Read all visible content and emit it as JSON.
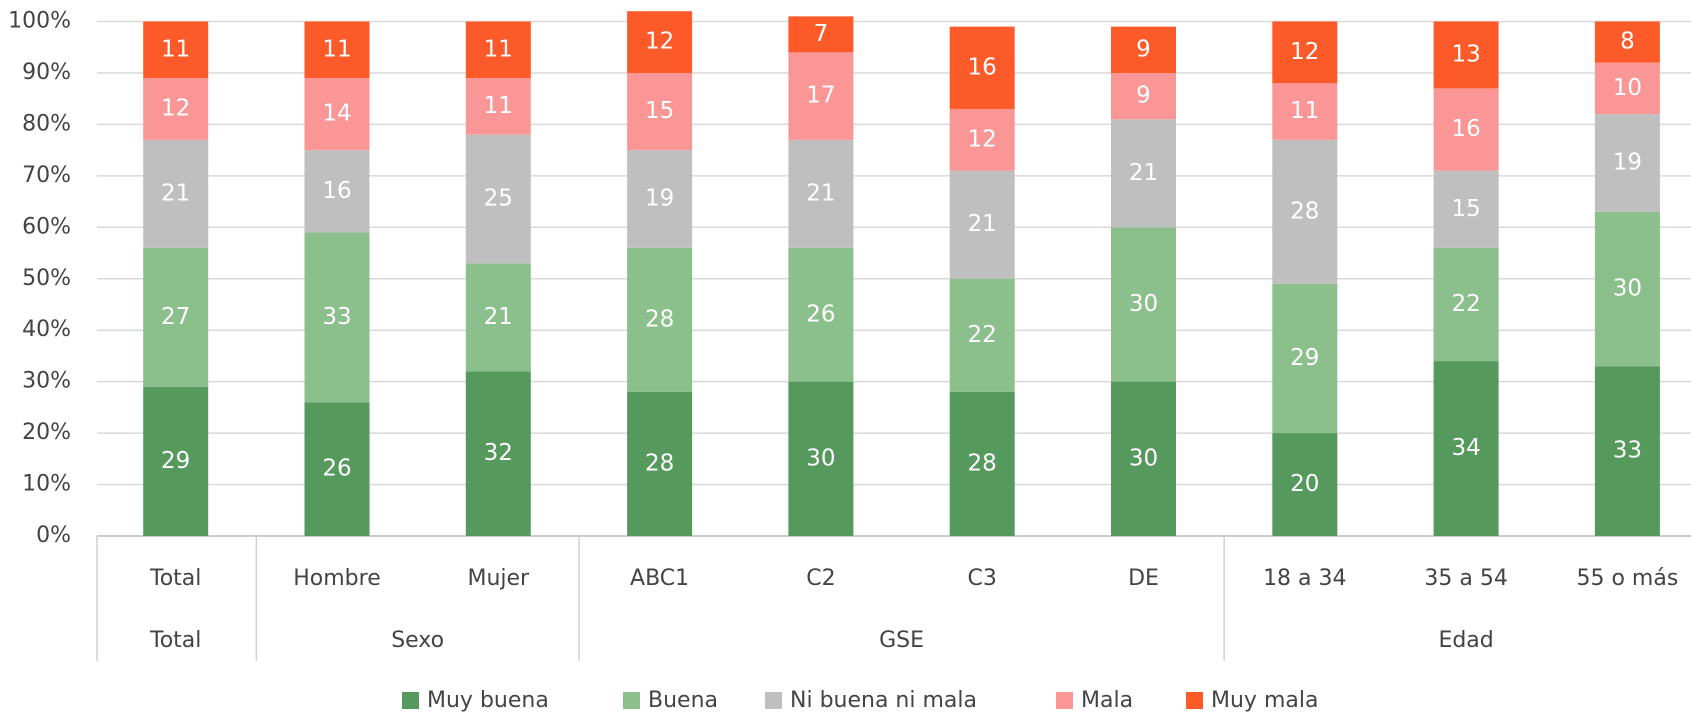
{
  "chart_data": {
    "type": "stacked_bar",
    "groups": [
      {
        "label": "Total",
        "categories": [
          "Total"
        ]
      },
      {
        "label": "Sexo",
        "categories": [
          "Hombre",
          "Mujer"
        ]
      },
      {
        "label": "GSE",
        "categories": [
          "ABC1",
          "C2",
          "C3",
          "DE"
        ]
      },
      {
        "label": "Edad",
        "categories": [
          "18 a 34",
          "35 a 54",
          "55 o más"
        ]
      }
    ],
    "series": [
      {
        "name": "Muy buena",
        "color": "#559a5c",
        "values": [
          29,
          26,
          32,
          28,
          30,
          28,
          30,
          20,
          34,
          33
        ]
      },
      {
        "name": "Buena",
        "color": "#8bbf8b",
        "values": [
          27,
          33,
          21,
          28,
          26,
          22,
          30,
          29,
          22,
          30
        ]
      },
      {
        "name": "Ni buena ni mala",
        "color": "#bfbfbf",
        "values": [
          21,
          16,
          25,
          19,
          21,
          21,
          21,
          28,
          15,
          19
        ]
      },
      {
        "name": "Mala",
        "color": "#fa9696",
        "values": [
          12,
          14,
          11,
          15,
          17,
          12,
          9,
          11,
          16,
          10
        ]
      },
      {
        "name": "Muy mala",
        "color": "#fc5a28",
        "values": [
          11,
          11,
          11,
          12,
          7,
          16,
          9,
          12,
          13,
          8
        ]
      }
    ],
    "ylim": [
      0,
      100
    ],
    "yticks": [
      {
        "value": 0,
        "label": "0%"
      },
      {
        "value": 10,
        "label": "10%"
      },
      {
        "value": 20,
        "label": "20%"
      },
      {
        "value": 30,
        "label": "30%"
      },
      {
        "value": 40,
        "label": "40%"
      },
      {
        "value": 50,
        "label": "50%"
      },
      {
        "value": 60,
        "label": "60%"
      },
      {
        "value": 70,
        "label": "70%"
      },
      {
        "value": 80,
        "label": "80%"
      },
      {
        "value": 90,
        "label": "90%"
      },
      {
        "value": 100,
        "label": "100%"
      }
    ],
    "grid": true,
    "legend": "bottom"
  }
}
